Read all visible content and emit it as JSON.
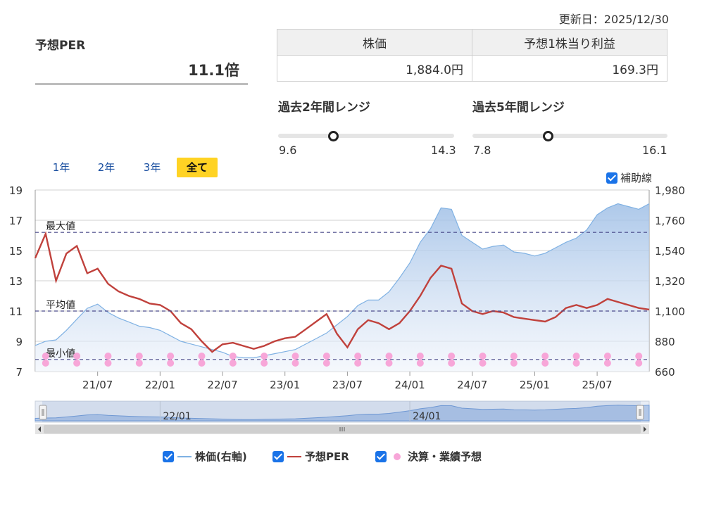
{
  "updated": "更新日：2025/12/30",
  "per": {
    "title": "予想PER",
    "value": "11.1倍"
  },
  "quote": {
    "headers": [
      "株価",
      "予想1株当り利益"
    ],
    "values": [
      "1,884.0円",
      "169.3円"
    ]
  },
  "ranges": [
    {
      "title": "過去2年間レンジ",
      "min": "9.6",
      "max": "14.3",
      "position": 0.31
    },
    {
      "title": "過去5年間レンジ",
      "min": "7.8",
      "max": "16.1",
      "position": 0.385
    }
  ],
  "periods": [
    "1年",
    "2年",
    "3年",
    "全て"
  ],
  "active_period": "全て",
  "aux_label": "補助線",
  "legend": [
    {
      "label": "株価(右軸)",
      "color": "#7fb1e3",
      "kind": "line"
    },
    {
      "label": "予想PER",
      "color": "#c0413c",
      "kind": "line"
    },
    {
      "label": "決算・業績予想",
      "color": "#f7a6d8",
      "kind": "dot"
    }
  ],
  "chart_data": {
    "type": "line",
    "x_ticks": [
      "21/07",
      "22/01",
      "22/07",
      "23/01",
      "23/07",
      "24/01",
      "24/07",
      "25/01",
      "25/07"
    ],
    "y_left": {
      "ticks": [
        7,
        9,
        11,
        13,
        15,
        17,
        19
      ],
      "range": [
        7,
        19
      ]
    },
    "y_right": {
      "ticks": [
        "660",
        "880",
        "1,100",
        "1,320",
        "1,540",
        "1,760",
        "1,980"
      ],
      "range": [
        660,
        1980
      ]
    },
    "reference_lines": [
      {
        "label": "最大値",
        "value": 16.2
      },
      {
        "label": "平均値",
        "value": 11.0
      },
      {
        "label": "最小値",
        "value": 7.8
      }
    ],
    "x_range": [
      "2021-01",
      "2025-12"
    ],
    "series": [
      {
        "name": "株価(右軸)",
        "axis": "right",
        "color": "#7fb1e3",
        "x": [
          "2021-01",
          "2021-02",
          "2021-03",
          "2021-04",
          "2021-05",
          "2021-06",
          "2021-07",
          "2021-08",
          "2021-09",
          "2021-10",
          "2021-11",
          "2021-12",
          "2022-01",
          "2022-02",
          "2022-03",
          "2022-04",
          "2022-05",
          "2022-06",
          "2022-07",
          "2022-08",
          "2022-09",
          "2022-10",
          "2022-11",
          "2022-12",
          "2023-01",
          "2023-02",
          "2023-03",
          "2023-04",
          "2023-05",
          "2023-06",
          "2023-07",
          "2023-08",
          "2023-09",
          "2023-10",
          "2023-11",
          "2023-12",
          "2024-01",
          "2024-02",
          "2024-03",
          "2024-04",
          "2024-05",
          "2024-06",
          "2024-07",
          "2024-08",
          "2024-09",
          "2024-10",
          "2024-11",
          "2024-12",
          "2025-01",
          "2025-02",
          "2025-03",
          "2025-04",
          "2025-05",
          "2025-06",
          "2025-07",
          "2025-08",
          "2025-09",
          "2025-10",
          "2025-11",
          "2025-12"
        ],
        "values": [
          850,
          880,
          890,
          960,
          1040,
          1120,
          1150,
          1090,
          1050,
          1020,
          990,
          980,
          960,
          920,
          880,
          860,
          840,
          820,
          800,
          770,
          760,
          760,
          775,
          790,
          805,
          820,
          860,
          900,
          940,
          1000,
          1060,
          1140,
          1180,
          1180,
          1240,
          1340,
          1450,
          1600,
          1700,
          1850,
          1840,
          1650,
          1600,
          1550,
          1570,
          1580,
          1530,
          1520,
          1500,
          1520,
          1560,
          1600,
          1630,
          1690,
          1800,
          1850,
          1880,
          1860,
          1840,
          1880
        ]
      },
      {
        "name": "予想PER",
        "axis": "left",
        "color": "#c0413c",
        "x": [
          "2021-01",
          "2021-02",
          "2021-03",
          "2021-04",
          "2021-05",
          "2021-06",
          "2021-07",
          "2021-08",
          "2021-09",
          "2021-10",
          "2021-11",
          "2021-12",
          "2022-01",
          "2022-02",
          "2022-03",
          "2022-04",
          "2022-05",
          "2022-06",
          "2022-07",
          "2022-08",
          "2022-09",
          "2022-10",
          "2022-11",
          "2022-12",
          "2023-01",
          "2023-02",
          "2023-03",
          "2023-04",
          "2023-05",
          "2023-06",
          "2023-07",
          "2023-08",
          "2023-09",
          "2023-10",
          "2023-11",
          "2023-12",
          "2024-01",
          "2024-02",
          "2024-03",
          "2024-04",
          "2024-05",
          "2024-06",
          "2024-07",
          "2024-08",
          "2024-09",
          "2024-10",
          "2024-11",
          "2024-12",
          "2025-01",
          "2025-02",
          "2025-03",
          "2025-04",
          "2025-05",
          "2025-06",
          "2025-07",
          "2025-08",
          "2025-09",
          "2025-10",
          "2025-11",
          "2025-12"
        ],
        "values": [
          14.5,
          16.1,
          13.0,
          14.8,
          15.3,
          13.5,
          13.8,
          12.8,
          12.3,
          12.0,
          11.8,
          11.5,
          11.4,
          11.0,
          10.2,
          9.8,
          9.0,
          8.3,
          8.8,
          8.9,
          8.7,
          8.5,
          8.7,
          9.0,
          9.2,
          9.3,
          9.8,
          10.3,
          10.8,
          9.5,
          8.6,
          9.8,
          10.4,
          10.2,
          9.8,
          10.2,
          11.0,
          12.0,
          13.2,
          14.0,
          13.8,
          11.5,
          11.0,
          10.8,
          11.0,
          10.9,
          10.6,
          10.5,
          10.4,
          10.3,
          10.6,
          11.2,
          11.4,
          11.2,
          11.4,
          11.8,
          11.6,
          11.4,
          11.2,
          11.1
        ]
      }
    ],
    "earnings_markers": {
      "name": "決算・業績予想",
      "color": "#f7a6d8",
      "x": [
        "2021-02",
        "2021-05",
        "2021-08",
        "2021-11",
        "2022-02",
        "2022-05",
        "2022-08",
        "2022-11",
        "2023-02",
        "2023-05",
        "2023-08",
        "2023-11",
        "2024-02",
        "2024-05",
        "2024-08",
        "2024-11",
        "2025-02",
        "2025-05",
        "2025-08",
        "2025-11"
      ]
    },
    "navigator": {
      "labels": [
        "22/01",
        "24/01"
      ]
    }
  }
}
